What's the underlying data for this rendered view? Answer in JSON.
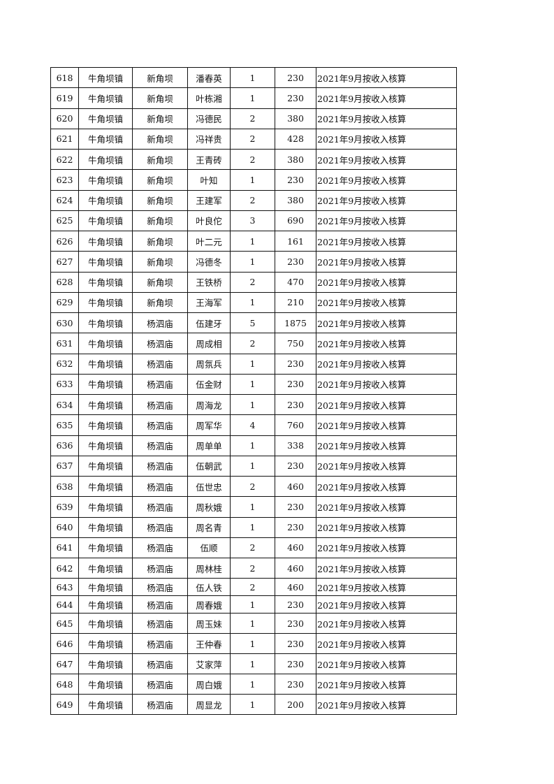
{
  "rows": [
    [
      "618",
      "牛角坝镇",
      "新角坝",
      "潘春英",
      "1",
      "230",
      "2021年9月按收入核算"
    ],
    [
      "619",
      "牛角坝镇",
      "新角坝",
      "叶栋湘",
      "1",
      "230",
      "2021年9月按收入核算"
    ],
    [
      "620",
      "牛角坝镇",
      "新角坝",
      "冯德民",
      "2",
      "380",
      "2021年9月按收入核算"
    ],
    [
      "621",
      "牛角坝镇",
      "新角坝",
      "冯祥贵",
      "2",
      "428",
      "2021年9月按收入核算"
    ],
    [
      "622",
      "牛角坝镇",
      "新角坝",
      "王青砖",
      "2",
      "380",
      "2021年9月按收入核算"
    ],
    [
      "623",
      "牛角坝镇",
      "新角坝",
      "叶知",
      "1",
      "230",
      "2021年9月按收入核算"
    ],
    [
      "624",
      "牛角坝镇",
      "新角坝",
      "王建军",
      "2",
      "380",
      "2021年9月按收入核算"
    ],
    [
      "625",
      "牛角坝镇",
      "新角坝",
      "叶良佗",
      "3",
      "690",
      "2021年9月按收入核算"
    ],
    [
      "626",
      "牛角坝镇",
      "新角坝",
      "叶二元",
      "1",
      "161",
      "2021年9月按收入核算"
    ],
    [
      "627",
      "牛角坝镇",
      "新角坝",
      "冯德冬",
      "1",
      "230",
      "2021年9月按收入核算"
    ],
    [
      "628",
      "牛角坝镇",
      "新角坝",
      "王铁桥",
      "2",
      "470",
      "2021年9月按收入核算"
    ],
    [
      "629",
      "牛角坝镇",
      "新角坝",
      "王海军",
      "1",
      "210",
      "2021年9月按收入核算"
    ],
    [
      "630",
      "牛角坝镇",
      "杨泗庙",
      "伍建牙",
      "5",
      "1875",
      "2021年9月按收入核算"
    ],
    [
      "631",
      "牛角坝镇",
      "杨泗庙",
      "周成相",
      "2",
      "750",
      "2021年9月按收入核算"
    ],
    [
      "632",
      "牛角坝镇",
      "杨泗庙",
      "周氛兵",
      "1",
      "230",
      "2021年9月按收入核算"
    ],
    [
      "633",
      "牛角坝镇",
      "杨泗庙",
      "伍金财",
      "1",
      "230",
      "2021年9月按收入核算"
    ],
    [
      "634",
      "牛角坝镇",
      "杨泗庙",
      "周海龙",
      "1",
      "230",
      "2021年9月按收入核算"
    ],
    [
      "635",
      "牛角坝镇",
      "杨泗庙",
      "周军华",
      "4",
      "760",
      "2021年9月按收入核算"
    ],
    [
      "636",
      "牛角坝镇",
      "杨泗庙",
      "周单单",
      "1",
      "338",
      "2021年9月按收入核算"
    ],
    [
      "637",
      "牛角坝镇",
      "杨泗庙",
      "伍朝武",
      "1",
      "230",
      "2021年9月按收入核算"
    ],
    [
      "638",
      "牛角坝镇",
      "杨泗庙",
      "伍世忠",
      "2",
      "460",
      "2021年9月按收入核算"
    ],
    [
      "639",
      "牛角坝镇",
      "杨泗庙",
      "周秋娥",
      "1",
      "230",
      "2021年9月按收入核算"
    ],
    [
      "640",
      "牛角坝镇",
      "杨泗庙",
      "周名青",
      "1",
      "230",
      "2021年9月按收入核算"
    ],
    [
      "641",
      "牛角坝镇",
      "杨泗庙",
      "伍顺",
      "2",
      "460",
      "2021年9月按收入核算"
    ],
    [
      "642",
      "牛角坝镇",
      "杨泗庙",
      "周林桂",
      "2",
      "460",
      "2021年9月按收入核算"
    ],
    [
      "643",
      "牛角坝镇",
      "杨泗庙",
      "伍人铁",
      "2",
      "460",
      "2021年9月按收入核算"
    ],
    [
      "644",
      "牛角坝镇",
      "杨泗庙",
      "周春娥",
      "1",
      "230",
      "2021年9月按收入核算"
    ],
    [
      "645",
      "牛角坝镇",
      "杨泗庙",
      "周玉妹",
      "1",
      "230",
      "2021年9月按收入核算"
    ],
    [
      "646",
      "牛角坝镇",
      "杨泗庙",
      "王仲春",
      "1",
      "230",
      "2021年9月按收入核算"
    ],
    [
      "647",
      "牛角坝镇",
      "杨泗庙",
      "艾家萍",
      "1",
      "230",
      "2021年9月按收入核算"
    ],
    [
      "648",
      "牛角坝镇",
      "杨泗庙",
      "周白娥",
      "1",
      "230",
      "2021年9月按收入核算"
    ],
    [
      "649",
      "牛角坝镇",
      "杨泗庙",
      "周显龙",
      "1",
      "200",
      "2021年9月按收入核算"
    ]
  ]
}
